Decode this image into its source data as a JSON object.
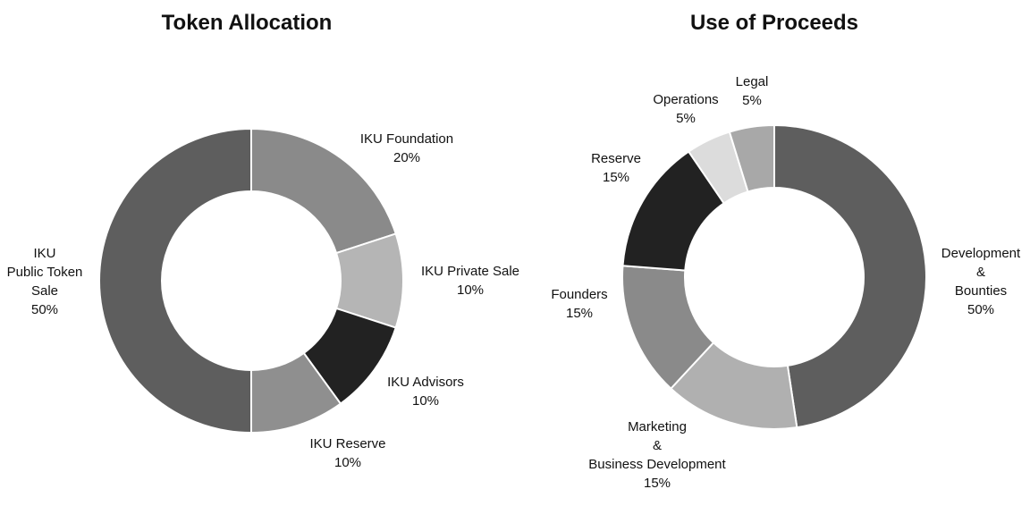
{
  "chart_data": [
    {
      "type": "pie",
      "title": "Token Allocation",
      "slices": [
        {
          "label": [
            "IKU Foundation"
          ],
          "pct_label": "20%",
          "value": 20,
          "color": "#8a8a8a"
        },
        {
          "label": [
            "IKU Private Sale"
          ],
          "pct_label": "10%",
          "value": 10,
          "color": "#b5b5b5"
        },
        {
          "label": [
            "IKU Advisors"
          ],
          "pct_label": "10%",
          "value": 10,
          "color": "#222222"
        },
        {
          "label": [
            "IKU Reserve"
          ],
          "pct_label": "10%",
          "value": 10,
          "color": "#8f8f8f"
        },
        {
          "label": [
            "IKU",
            "Public Token",
            "Sale"
          ],
          "pct_label": "50%",
          "value": 50,
          "color": "#5e5e5e"
        }
      ]
    },
    {
      "type": "pie",
      "title": "Use of Proceeds",
      "slices": [
        {
          "label": [
            "Development",
            "&",
            "Bounties"
          ],
          "pct_label": "50%",
          "value": 50,
          "color": "#5e5e5e"
        },
        {
          "label": [
            "Marketing",
            "&",
            "Business Development"
          ],
          "pct_label": "15%",
          "value": 15,
          "color": "#b0b0b0"
        },
        {
          "label": [
            "Founders"
          ],
          "pct_label": "15%",
          "value": 15,
          "color": "#8a8a8a"
        },
        {
          "label": [
            "Reserve"
          ],
          "pct_label": "15%",
          "value": 15,
          "color": "#222222"
        },
        {
          "label": [
            "Operations"
          ],
          "pct_label": "5%",
          "value": 5,
          "color": "#dcdcdc"
        },
        {
          "label": [
            "Legal"
          ],
          "pct_label": "5%",
          "value": 5,
          "color": "#a8a8a8"
        }
      ]
    }
  ]
}
